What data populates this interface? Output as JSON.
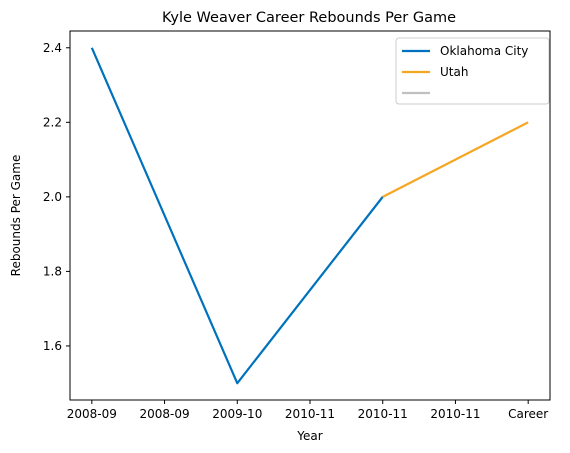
{
  "chart_data": {
    "type": "line",
    "title": "Kyle Weaver Career Rebounds Per Game",
    "xlabel": "Year",
    "ylabel": "Rebounds Per Game",
    "x_tick_labels": [
      "2008-09",
      "2008-09",
      "2009-10",
      "2010-11",
      "2010-11",
      "2010-11",
      "Career"
    ],
    "xlim": [
      -0.3,
      6.3
    ],
    "ylim": [
      1.455,
      2.445
    ],
    "y_ticks": [
      1.6,
      1.8,
      2.0,
      2.2,
      2.4
    ],
    "y_tick_labels": [
      "1.6",
      "1.8",
      "2.0",
      "2.2",
      "2.4"
    ],
    "grid": false,
    "legend_position": "top-right",
    "series": [
      {
        "name": "Oklahoma City",
        "color": "#0072bd",
        "points": [
          {
            "x": 0,
            "y": 2.4
          },
          {
            "x": 2,
            "y": 1.5
          },
          {
            "x": 4,
            "y": 2.0
          }
        ]
      },
      {
        "name": "Utah",
        "color": "#f5a623",
        "points": [
          {
            "x": 4,
            "y": 2.0
          },
          {
            "x": 6,
            "y": 2.2
          }
        ]
      },
      {
        "name": "",
        "color": "#c0c0c0",
        "points": []
      }
    ]
  }
}
